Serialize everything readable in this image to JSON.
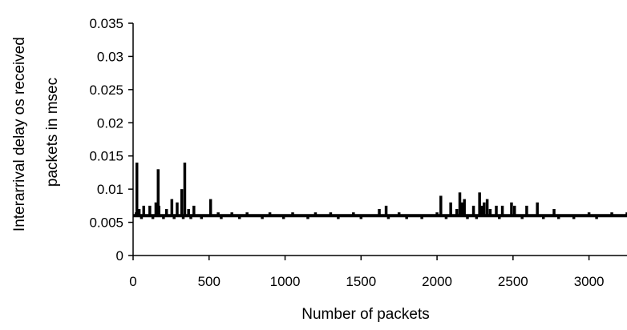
{
  "chart_data": {
    "type": "line",
    "title": "",
    "xlabel": "Number of packets",
    "ylabel_lines": [
      "Interarrival delay os received",
      "packets in msec"
    ],
    "xlim": [
      0,
      3250
    ],
    "ylim": [
      0,
      0.035
    ],
    "x_ticks": [
      0,
      500,
      1000,
      1500,
      2000,
      2500,
      3000
    ],
    "x_tick_labels": [
      "0",
      "500",
      "1000",
      "1500",
      "2000",
      "2500",
      "3000"
    ],
    "y_ticks": [
      0,
      0.005,
      0.01,
      0.015,
      0.02,
      0.025,
      0.03,
      0.035
    ],
    "y_tick_labels": [
      "0",
      "0.005",
      "0.01",
      "0.015",
      "0.02",
      "0.025",
      "0.03",
      "0.035"
    ],
    "grid": false,
    "legend": "none",
    "series": [
      {
        "color": "#000000",
        "baseline": 0.006,
        "x": [
          0,
          20,
          25,
          30,
          40,
          55,
          70,
          90,
          110,
          130,
          150,
          165,
          170,
          180,
          200,
          220,
          240,
          255,
          270,
          290,
          300,
          320,
          330,
          340,
          355,
          365,
          380,
          400,
          420,
          450,
          480,
          510,
          540,
          560,
          580,
          610,
          650,
          700,
          750,
          800,
          850,
          900,
          950,
          990,
          1050,
          1100,
          1150,
          1200,
          1250,
          1300,
          1350,
          1400,
          1450,
          1500,
          1560,
          1620,
          1665,
          1680,
          1700,
          1750,
          1800,
          1850,
          1900,
          1950,
          2000,
          2025,
          2060,
          2090,
          2110,
          2130,
          2150,
          2165,
          2180,
          2200,
          2215,
          2240,
          2260,
          2280,
          2295,
          2310,
          2330,
          2350,
          2370,
          2390,
          2410,
          2430,
          2460,
          2490,
          2510,
          2530,
          2560,
          2590,
          2620,
          2660,
          2700,
          2740,
          2770,
          2800,
          2850,
          2900,
          2950,
          3000,
          3050,
          3100,
          3150,
          3200,
          3250
        ],
        "y": [
          0.006,
          0.0065,
          0.014,
          0.006,
          0.007,
          0.0055,
          0.0075,
          0.006,
          0.0075,
          0.0055,
          0.008,
          0.013,
          0.0075,
          0.006,
          0.0055,
          0.007,
          0.006,
          0.0085,
          0.0055,
          0.008,
          0.006,
          0.01,
          0.0055,
          0.014,
          0.006,
          0.007,
          0.0055,
          0.0075,
          0.006,
          0.0055,
          0.006,
          0.0085,
          0.006,
          0.0065,
          0.0055,
          0.006,
          0.0065,
          0.0055,
          0.0065,
          0.006,
          0.0055,
          0.0065,
          0.006,
          0.0055,
          0.0065,
          0.006,
          0.0055,
          0.0065,
          0.006,
          0.0065,
          0.0055,
          0.006,
          0.0065,
          0.0055,
          0.006,
          0.007,
          0.0075,
          0.0055,
          0.006,
          0.0065,
          0.0055,
          0.006,
          0.0055,
          0.006,
          0.0065,
          0.009,
          0.0055,
          0.008,
          0.006,
          0.007,
          0.0095,
          0.008,
          0.0085,
          0.0055,
          0.006,
          0.0075,
          0.0055,
          0.0095,
          0.0075,
          0.008,
          0.0085,
          0.007,
          0.006,
          0.0075,
          0.0055,
          0.0075,
          0.006,
          0.008,
          0.0075,
          0.006,
          0.0055,
          0.0075,
          0.006,
          0.008,
          0.0055,
          0.006,
          0.007,
          0.0055,
          0.006,
          0.0055,
          0.006,
          0.0065,
          0.0055,
          0.006,
          0.0065,
          0.006,
          0.0065
        ]
      }
    ]
  }
}
